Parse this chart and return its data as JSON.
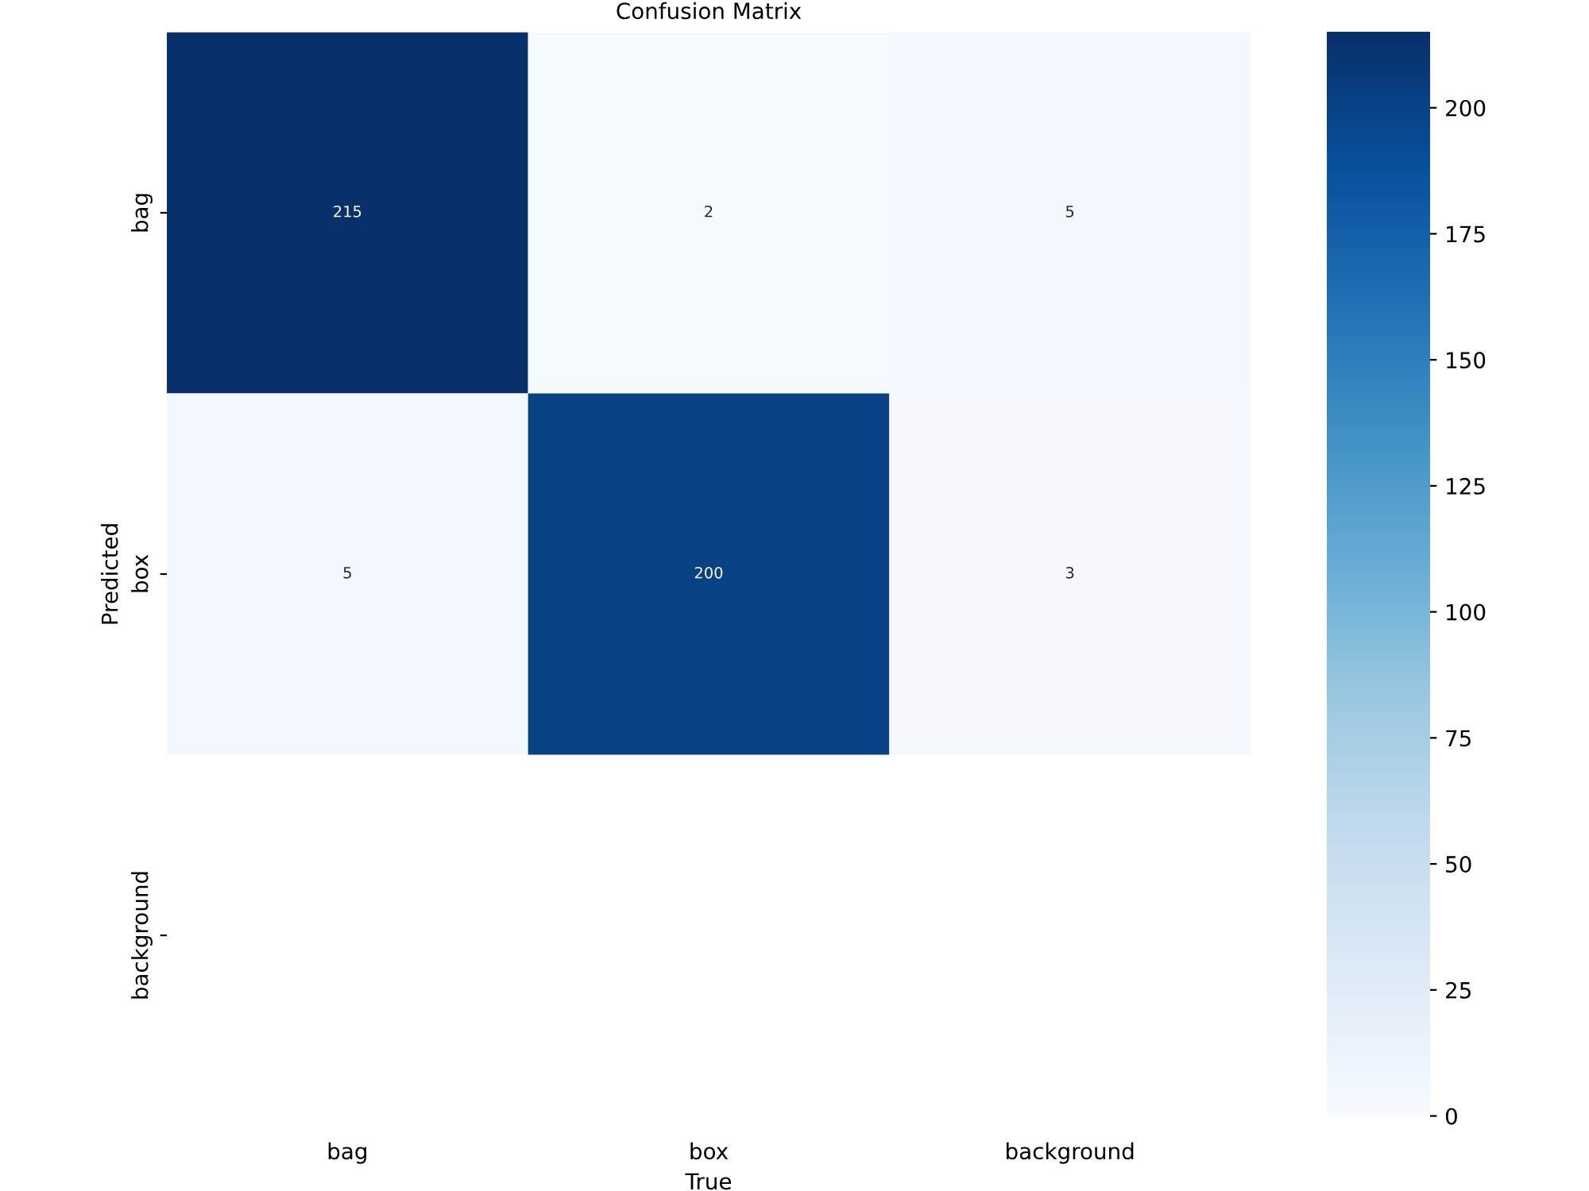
{
  "chart_data": {
    "type": "heatmap",
    "title": "Confusion Matrix",
    "xlabel": "True",
    "ylabel": "Predicted",
    "categories": [
      "bag",
      "box",
      "background"
    ],
    "y_categories": [
      "bag",
      "box",
      "background"
    ],
    "cells": [
      [
        215,
        2,
        5
      ],
      [
        5,
        200,
        3
      ],
      [
        null,
        null,
        null
      ]
    ],
    "data_labels": true,
    "clim": [
      0,
      215
    ],
    "cticks": [
      0,
      25,
      50,
      75,
      100,
      125,
      150,
      175,
      200
    ]
  }
}
